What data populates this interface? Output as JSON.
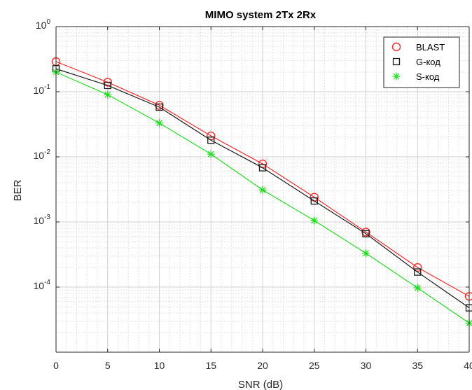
{
  "chart_data": {
    "type": "line",
    "title": "MIMO system 2Tx 2Rx",
    "xlabel": "SNR (dB)",
    "ylabel": "BER",
    "x": [
      0,
      5,
      10,
      15,
      20,
      25,
      30,
      35,
      40
    ],
    "xlim": [
      0,
      40
    ],
    "ylim": [
      1e-05,
      1
    ],
    "yscale": "log",
    "grid": true,
    "minor_grid": true,
    "legend_position": "top-right",
    "x_ticks": [
      "0",
      "5",
      "10",
      "15",
      "20",
      "25",
      "30",
      "35",
      "40"
    ],
    "y_ticks": [
      {
        "value": 1,
        "base": "10",
        "exp": "0"
      },
      {
        "value": 0.1,
        "base": "10",
        "exp": "-1"
      },
      {
        "value": 0.01,
        "base": "10",
        "exp": "-2"
      },
      {
        "value": 0.001,
        "base": "10",
        "exp": "-3"
      },
      {
        "value": 0.0001,
        "base": "10",
        "exp": "-4"
      }
    ],
    "series": [
      {
        "name": "BLAST",
        "color": "#ff2a2a",
        "marker": "circle",
        "values": [
          0.29,
          0.14,
          0.062,
          0.021,
          0.0078,
          0.0024,
          0.0007,
          0.0002,
          7.2e-05
        ]
      },
      {
        "name": "G-код",
        "color": "#1a1a1a",
        "marker": "square",
        "values": [
          0.225,
          0.125,
          0.058,
          0.018,
          0.0068,
          0.0021,
          0.00066,
          0.00017,
          4.8e-05
        ]
      },
      {
        "name": "S-код",
        "color": "#22dd22",
        "marker": "asterisk",
        "values": [
          0.2,
          0.09,
          0.033,
          0.011,
          0.0031,
          0.00105,
          0.00033,
          9.7e-05,
          2.8e-05
        ]
      }
    ]
  }
}
